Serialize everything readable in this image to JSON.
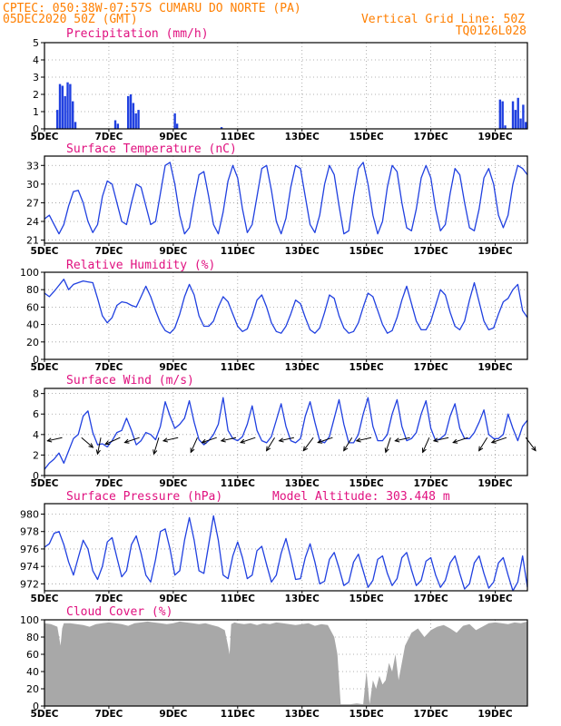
{
  "header": {
    "line1_left": "CPTEC:   050:38W-07:57S  CUMARU DO NORTE (PA)",
    "line1_right": "Vertical Grid Line: 50Z",
    "line2_left": "05DEC2020 50Z (GMT)",
    "line2_right": "TQ0126L028"
  },
  "colors": {
    "header": "#ff7f00",
    "title": "#e0107f",
    "series": "#2040e0",
    "cloud": "#a8a8a8",
    "grid": "#999999"
  },
  "x_axis": {
    "range": [
      0,
      15
    ],
    "day_ticks": [
      "5DEC",
      "7DEC",
      "9DEC",
      "11DEC",
      "13DEC",
      "15DEC",
      "17DEC",
      "19DEC"
    ],
    "day_tick_values": [
      0,
      2,
      4,
      6,
      8,
      10,
      12,
      14
    ]
  },
  "chart_data": [
    {
      "id": "precip",
      "type": "bar",
      "title": "Precipitation (mm/h)",
      "ylim": [
        0,
        5
      ],
      "yticks": [
        0,
        1,
        2,
        3,
        4,
        5
      ],
      "x": [
        0.4,
        0.48,
        0.56,
        0.64,
        0.72,
        0.8,
        0.88,
        0.96,
        2.2,
        2.28,
        2.6,
        2.68,
        2.76,
        2.84,
        2.92,
        4.05,
        4.12,
        5.5,
        14.15,
        14.23,
        14.31,
        14.55,
        14.63,
        14.71,
        14.79,
        14.87,
        14.95
      ],
      "values": [
        1.1,
        2.6,
        2.5,
        1.9,
        2.7,
        2.6,
        1.6,
        0.4,
        0.5,
        0.3,
        1.9,
        2.0,
        1.5,
        0.9,
        1.1,
        0.9,
        0.3,
        0.1,
        1.7,
        1.6,
        0.2,
        1.6,
        1.1,
        1.8,
        0.6,
        1.4,
        0.4
      ]
    },
    {
      "id": "temp",
      "type": "line",
      "title": "Surface Temperature (nC)",
      "ylim": [
        20.5,
        34.5
      ],
      "yticks": [
        21,
        24,
        27,
        30,
        33
      ],
      "x": [
        0,
        0.15,
        0.3,
        0.45,
        0.6,
        0.75,
        0.9,
        1.05,
        1.2,
        1.35,
        1.5,
        1.65,
        1.8,
        1.95,
        2.1,
        2.25,
        2.4,
        2.55,
        2.7,
        2.85,
        3.0,
        3.15,
        3.3,
        3.45,
        3.6,
        3.75,
        3.9,
        4.05,
        4.2,
        4.35,
        4.5,
        4.65,
        4.8,
        4.95,
        5.1,
        5.25,
        5.4,
        5.55,
        5.7,
        5.85,
        6.0,
        6.15,
        6.3,
        6.45,
        6.6,
        6.75,
        6.9,
        7.05,
        7.2,
        7.35,
        7.5,
        7.65,
        7.8,
        7.95,
        8.1,
        8.25,
        8.4,
        8.55,
        8.7,
        8.85,
        9.0,
        9.15,
        9.3,
        9.45,
        9.6,
        9.75,
        9.9,
        10.05,
        10.2,
        10.35,
        10.5,
        10.65,
        10.8,
        10.95,
        11.1,
        11.25,
        11.4,
        11.55,
        11.7,
        11.85,
        12.0,
        12.15,
        12.3,
        12.45,
        12.6,
        12.75,
        12.9,
        13.05,
        13.2,
        13.35,
        13.5,
        13.65,
        13.8,
        13.95,
        14.1,
        14.25,
        14.4,
        14.55,
        14.7,
        14.85,
        15.0
      ],
      "values": [
        24.4,
        25.0,
        23.5,
        22.0,
        23.5,
        26.5,
        28.8,
        29.0,
        27.0,
        24.0,
        22.2,
        23.5,
        28.0,
        30.5,
        30.0,
        27.0,
        24.0,
        23.5,
        27.0,
        30.0,
        29.5,
        26.5,
        23.5,
        24.0,
        28.5,
        33.0,
        33.5,
        30.0,
        25.0,
        22.0,
        23.0,
        27.5,
        31.5,
        32.0,
        28.0,
        23.5,
        22.0,
        25.5,
        30.5,
        33.0,
        31.0,
        26.0,
        22.2,
        23.5,
        28.0,
        32.5,
        33.0,
        29.0,
        24.0,
        22.0,
        24.5,
        29.5,
        33.0,
        32.5,
        28.0,
        23.5,
        22.2,
        25.0,
        30.0,
        33.0,
        31.5,
        26.5,
        22.0,
        22.5,
        28.0,
        32.5,
        33.5,
        30.0,
        25.0,
        22.0,
        24.0,
        29.5,
        33.0,
        32.0,
        27.0,
        23.0,
        22.5,
        26.0,
        31.0,
        33.0,
        31.0,
        26.0,
        22.5,
        23.5,
        28.5,
        32.5,
        31.5,
        27.0,
        23.0,
        22.5,
        26.0,
        31.0,
        32.5,
        30.0,
        25.0,
        23.0,
        25.0,
        30.0,
        33.0,
        32.5,
        31.5
      ]
    },
    {
      "id": "rh",
      "type": "line",
      "title": "Relative Humidity (%)",
      "ylim": [
        0,
        100
      ],
      "yticks": [
        0,
        20,
        40,
        60,
        80,
        100
      ],
      "x": [
        0,
        0.15,
        0.3,
        0.45,
        0.6,
        0.75,
        0.9,
        1.05,
        1.2,
        1.35,
        1.5,
        1.65,
        1.8,
        1.95,
        2.1,
        2.25,
        2.4,
        2.55,
        2.7,
        2.85,
        3.0,
        3.15,
        3.3,
        3.45,
        3.6,
        3.75,
        3.9,
        4.05,
        4.2,
        4.35,
        4.5,
        4.65,
        4.8,
        4.95,
        5.1,
        5.25,
        5.4,
        5.55,
        5.7,
        5.85,
        6.0,
        6.15,
        6.3,
        6.45,
        6.6,
        6.75,
        6.9,
        7.05,
        7.2,
        7.35,
        7.5,
        7.65,
        7.8,
        7.95,
        8.1,
        8.25,
        8.4,
        8.55,
        8.7,
        8.85,
        9.0,
        9.15,
        9.3,
        9.45,
        9.6,
        9.75,
        9.9,
        10.05,
        10.2,
        10.35,
        10.5,
        10.65,
        10.8,
        10.95,
        11.1,
        11.25,
        11.4,
        11.55,
        11.7,
        11.85,
        12.0,
        12.15,
        12.3,
        12.45,
        12.6,
        12.75,
        12.9,
        13.05,
        13.2,
        13.35,
        13.5,
        13.65,
        13.8,
        13.95,
        14.1,
        14.25,
        14.4,
        14.55,
        14.7,
        14.85,
        15.0
      ],
      "values": [
        76,
        72,
        78,
        85,
        92,
        80,
        86,
        88,
        90,
        89,
        88,
        70,
        50,
        42,
        48,
        62,
        66,
        65,
        62,
        60,
        72,
        84,
        72,
        56,
        42,
        33,
        30,
        36,
        52,
        72,
        86,
        74,
        50,
        38,
        38,
        44,
        60,
        72,
        66,
        52,
        38,
        32,
        35,
        50,
        68,
        74,
        60,
        42,
        32,
        30,
        38,
        52,
        68,
        64,
        48,
        34,
        30,
        36,
        54,
        74,
        70,
        50,
        36,
        30,
        32,
        42,
        60,
        76,
        72,
        56,
        40,
        30,
        33,
        48,
        68,
        84,
        64,
        44,
        34,
        34,
        44,
        62,
        80,
        74,
        54,
        38,
        34,
        44,
        68,
        88,
        66,
        44,
        34,
        36,
        52,
        66,
        70,
        80,
        86,
        56,
        48
      ]
    },
    {
      "id": "wind",
      "type": "line",
      "title": "Surface Wind (m/s)",
      "ylim": [
        0,
        8.5
      ],
      "yticks": [
        0,
        2,
        4,
        6,
        8
      ],
      "x": [
        0,
        0.15,
        0.3,
        0.45,
        0.6,
        0.75,
        0.9,
        1.05,
        1.2,
        1.35,
        1.5,
        1.65,
        1.8,
        1.95,
        2.1,
        2.25,
        2.4,
        2.55,
        2.7,
        2.85,
        3.0,
        3.15,
        3.3,
        3.45,
        3.6,
        3.75,
        3.9,
        4.05,
        4.2,
        4.35,
        4.5,
        4.65,
        4.8,
        4.95,
        5.1,
        5.25,
        5.4,
        5.55,
        5.7,
        5.85,
        6.0,
        6.15,
        6.3,
        6.45,
        6.6,
        6.75,
        6.9,
        7.05,
        7.2,
        7.35,
        7.5,
        7.65,
        7.8,
        7.95,
        8.1,
        8.25,
        8.4,
        8.55,
        8.7,
        8.85,
        9.0,
        9.15,
        9.3,
        9.45,
        9.6,
        9.75,
        9.9,
        10.05,
        10.2,
        10.35,
        10.5,
        10.65,
        10.8,
        10.95,
        11.1,
        11.25,
        11.4,
        11.55,
        11.7,
        11.85,
        12.0,
        12.15,
        12.3,
        12.45,
        12.6,
        12.75,
        12.9,
        13.05,
        13.2,
        13.35,
        13.5,
        13.65,
        13.8,
        13.95,
        14.1,
        14.25,
        14.4,
        14.55,
        14.7,
        14.85,
        15.0
      ],
      "values": [
        0.6,
        1.2,
        1.6,
        2.2,
        1.2,
        2.4,
        3.6,
        4.0,
        5.8,
        6.3,
        4.2,
        3.0,
        3.1,
        2.8,
        3.4,
        4.2,
        4.4,
        5.6,
        4.4,
        3.0,
        3.4,
        4.2,
        4.0,
        3.5,
        4.8,
        7.2,
        5.8,
        4.6,
        5.0,
        5.6,
        7.3,
        5.2,
        3.5,
        3.0,
        3.4,
        4.0,
        5.0,
        7.6,
        4.4,
        3.6,
        3.4,
        3.8,
        5.0,
        6.8,
        4.4,
        3.4,
        3.2,
        3.8,
        5.4,
        7.0,
        4.8,
        3.4,
        3.2,
        3.6,
        5.8,
        7.2,
        5.2,
        3.4,
        3.2,
        3.8,
        5.6,
        7.4,
        5.0,
        3.2,
        3.2,
        4.0,
        6.0,
        7.6,
        4.8,
        3.4,
        3.4,
        4.0,
        6.0,
        7.4,
        4.8,
        3.4,
        3.6,
        4.2,
        6.0,
        7.3,
        4.6,
        3.4,
        3.6,
        4.0,
        5.8,
        7.0,
        4.6,
        3.6,
        3.6,
        4.2,
        5.2,
        6.4,
        4.0,
        3.6,
        3.6,
        4.0,
        6.0,
        4.6,
        3.4,
        4.8,
        5.4
      ]
    },
    {
      "id": "pressure",
      "type": "line",
      "title": "Surface Pressure (hPa)",
      "annotation": "Model Altitude: 303.448 m",
      "ylim": [
        971.2,
        981.2
      ],
      "yticks": [
        972,
        974,
        976,
        978,
        980
      ],
      "x": [
        0,
        0.15,
        0.3,
        0.45,
        0.6,
        0.75,
        0.9,
        1.05,
        1.2,
        1.35,
        1.5,
        1.65,
        1.8,
        1.95,
        2.1,
        2.25,
        2.4,
        2.55,
        2.7,
        2.85,
        3.0,
        3.15,
        3.3,
        3.45,
        3.6,
        3.75,
        3.9,
        4.05,
        4.2,
        4.35,
        4.5,
        4.65,
        4.8,
        4.95,
        5.1,
        5.25,
        5.4,
        5.55,
        5.7,
        5.85,
        6.0,
        6.15,
        6.3,
        6.45,
        6.6,
        6.75,
        6.9,
        7.05,
        7.2,
        7.35,
        7.5,
        7.65,
        7.8,
        7.95,
        8.1,
        8.25,
        8.4,
        8.55,
        8.7,
        8.85,
        9.0,
        9.15,
        9.3,
        9.45,
        9.6,
        9.75,
        9.9,
        10.05,
        10.2,
        10.35,
        10.5,
        10.65,
        10.8,
        10.95,
        11.1,
        11.25,
        11.4,
        11.55,
        11.7,
        11.85,
        12.0,
        12.15,
        12.3,
        12.45,
        12.6,
        12.75,
        12.9,
        13.05,
        13.2,
        13.35,
        13.5,
        13.65,
        13.8,
        13.95,
        14.1,
        14.25,
        14.4,
        14.55,
        14.7,
        14.85,
        15.0
      ],
      "values": [
        976.2,
        976.6,
        977.8,
        978.0,
        976.5,
        974.5,
        973.0,
        975.0,
        977.0,
        976.0,
        973.5,
        972.5,
        974.0,
        976.8,
        977.3,
        975.0,
        972.8,
        973.5,
        976.5,
        977.5,
        975.5,
        973.0,
        972.2,
        974.8,
        978.0,
        978.3,
        976.0,
        973.0,
        973.5,
        977.0,
        979.6,
        977.0,
        973.5,
        973.2,
        976.5,
        979.8,
        977.0,
        973.0,
        972.6,
        975.2,
        976.8,
        975.0,
        972.6,
        973.0,
        975.8,
        976.3,
        974.2,
        972.2,
        973.0,
        975.5,
        977.2,
        975.0,
        972.5,
        972.6,
        975.0,
        976.6,
        974.5,
        972.0,
        972.3,
        974.8,
        975.6,
        973.8,
        971.8,
        972.2,
        974.5,
        975.4,
        973.5,
        971.6,
        972.4,
        974.8,
        975.2,
        973.2,
        971.8,
        972.6,
        975.0,
        975.6,
        973.6,
        971.8,
        972.4,
        974.6,
        975.0,
        973.0,
        971.6,
        972.4,
        974.4,
        975.2,
        973.2,
        971.4,
        972.0,
        974.4,
        975.2,
        973.2,
        971.5,
        972.2,
        974.4,
        975.0,
        973.0,
        971.2,
        972.2,
        975.2,
        971.6
      ]
    },
    {
      "id": "cloud",
      "type": "area",
      "title": "Cloud Cover (%)",
      "ylim": [
        0,
        100
      ],
      "yticks": [
        0,
        20,
        40,
        60,
        80,
        100
      ],
      "x": [
        0,
        0.2,
        0.4,
        0.5,
        0.55,
        0.6,
        0.8,
        1.0,
        1.2,
        1.4,
        1.6,
        1.8,
        2.0,
        2.2,
        2.4,
        2.6,
        2.8,
        3.0,
        3.2,
        3.4,
        3.6,
        3.8,
        4.0,
        4.2,
        4.4,
        4.6,
        4.8,
        5.0,
        5.2,
        5.4,
        5.6,
        5.7,
        5.75,
        5.8,
        5.9,
        6.0,
        6.2,
        6.4,
        6.6,
        6.8,
        7.0,
        7.2,
        7.4,
        7.6,
        7.8,
        8.0,
        8.2,
        8.4,
        8.6,
        8.8,
        9.0,
        9.1,
        9.2,
        9.3,
        9.5,
        9.7,
        9.9,
        10.0,
        10.1,
        10.2,
        10.3,
        10.4,
        10.5,
        10.6,
        10.7,
        10.8,
        10.9,
        11.0,
        11.2,
        11.4,
        11.6,
        11.8,
        12.0,
        12.2,
        12.4,
        12.6,
        12.8,
        13.0,
        13.2,
        13.4,
        13.6,
        13.8,
        14.0,
        14.2,
        14.4,
        14.6,
        14.8,
        15.0
      ],
      "values": [
        96,
        95,
        92,
        70,
        90,
        96,
        96,
        95,
        94,
        92,
        95,
        96,
        97,
        96,
        95,
        93,
        96,
        97,
        98,
        97,
        96,
        95,
        96,
        98,
        97,
        96,
        95,
        96,
        94,
        92,
        88,
        70,
        60,
        95,
        97,
        96,
        95,
        96,
        94,
        96,
        95,
        97,
        96,
        95,
        94,
        95,
        96,
        93,
        95,
        94,
        80,
        60,
        2,
        2,
        2,
        3,
        2,
        40,
        2,
        30,
        20,
        35,
        25,
        30,
        50,
        40,
        60,
        30,
        70,
        85,
        90,
        80,
        88,
        92,
        94,
        90,
        85,
        93,
        95,
        88,
        92,
        96,
        97,
        96,
        95,
        97,
        96,
        98
      ]
    }
  ]
}
